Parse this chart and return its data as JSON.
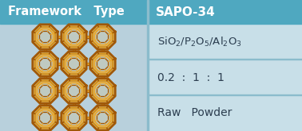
{
  "bg_color": "#aed0de",
  "header_bg": "#4fa8c0",
  "header_left_text": "Framework   Type",
  "header_right_text": "SAPO-34",
  "header_text_color": "#ffffff",
  "right_panel_bg": "#c8dfe8",
  "left_panel_bg": "#b8d0dc",
  "row1_formula": "$\\mathrm{SiO_2/P_2O_5/Al_2O_3}$",
  "row2_text": "0.2  :  1  :  1",
  "row3_text": "Raw   Powder",
  "divider_color": "#8bbccc",
  "text_color": "#2c3e50",
  "gold_outer": "#d4901a",
  "gold_inner": "#c07010",
  "gold_mid": "#e8a830",
  "gold_dark": "#a05808",
  "fig_width": 3.78,
  "fig_height": 1.65,
  "dpi": 100
}
